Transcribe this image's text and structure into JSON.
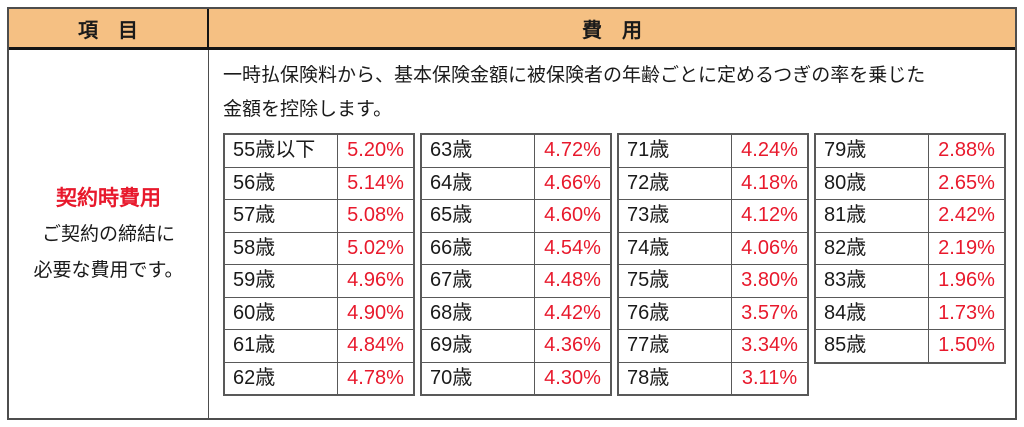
{
  "header": {
    "item_label": "項　目",
    "fee_label": "費　用"
  },
  "item_cell": {
    "title": "契約時費用",
    "description_lines": [
      "ご契約の締結に",
      "必要な費用です。"
    ]
  },
  "fee_cell": {
    "description_lines": [
      "一時払保険料から、基本保険金額に被保険者の年齢ごとに定めるつぎの率を乗じた",
      "金額を控除します。"
    ]
  },
  "fee_tables": [
    {
      "rows": [
        {
          "age": "55歳以下",
          "rate": "5.20%"
        },
        {
          "age": "56歳",
          "rate": "5.14%"
        },
        {
          "age": "57歳",
          "rate": "5.08%"
        },
        {
          "age": "58歳",
          "rate": "5.02%"
        },
        {
          "age": "59歳",
          "rate": "4.96%"
        },
        {
          "age": "60歳",
          "rate": "4.90%"
        },
        {
          "age": "61歳",
          "rate": "4.84%"
        },
        {
          "age": "62歳",
          "rate": "4.78%"
        }
      ]
    },
    {
      "rows": [
        {
          "age": "63歳",
          "rate": "4.72%"
        },
        {
          "age": "64歳",
          "rate": "4.66%"
        },
        {
          "age": "65歳",
          "rate": "4.60%"
        },
        {
          "age": "66歳",
          "rate": "4.54%"
        },
        {
          "age": "67歳",
          "rate": "4.48%"
        },
        {
          "age": "68歳",
          "rate": "4.42%"
        },
        {
          "age": "69歳",
          "rate": "4.36%"
        },
        {
          "age": "70歳",
          "rate": "4.30%"
        }
      ]
    },
    {
      "rows": [
        {
          "age": "71歳",
          "rate": "4.24%"
        },
        {
          "age": "72歳",
          "rate": "4.18%"
        },
        {
          "age": "73歳",
          "rate": "4.12%"
        },
        {
          "age": "74歳",
          "rate": "4.06%"
        },
        {
          "age": "75歳",
          "rate": "3.80%"
        },
        {
          "age": "76歳",
          "rate": "3.57%"
        },
        {
          "age": "77歳",
          "rate": "3.34%"
        },
        {
          "age": "78歳",
          "rate": "3.11%"
        }
      ]
    },
    {
      "rows": [
        {
          "age": "79歳",
          "rate": "2.88%"
        },
        {
          "age": "80歳",
          "rate": "2.65%"
        },
        {
          "age": "81歳",
          "rate": "2.42%"
        },
        {
          "age": "82歳",
          "rate": "2.19%"
        },
        {
          "age": "83歳",
          "rate": "1.96%"
        },
        {
          "age": "84歳",
          "rate": "1.73%"
        },
        {
          "age": "85歳",
          "rate": "1.50%"
        }
      ]
    }
  ],
  "colors": {
    "header_bg": "#f5c083",
    "accent_red": "#e8192c",
    "border_dark": "#4d4d4d",
    "subtable_border": "#595959"
  }
}
